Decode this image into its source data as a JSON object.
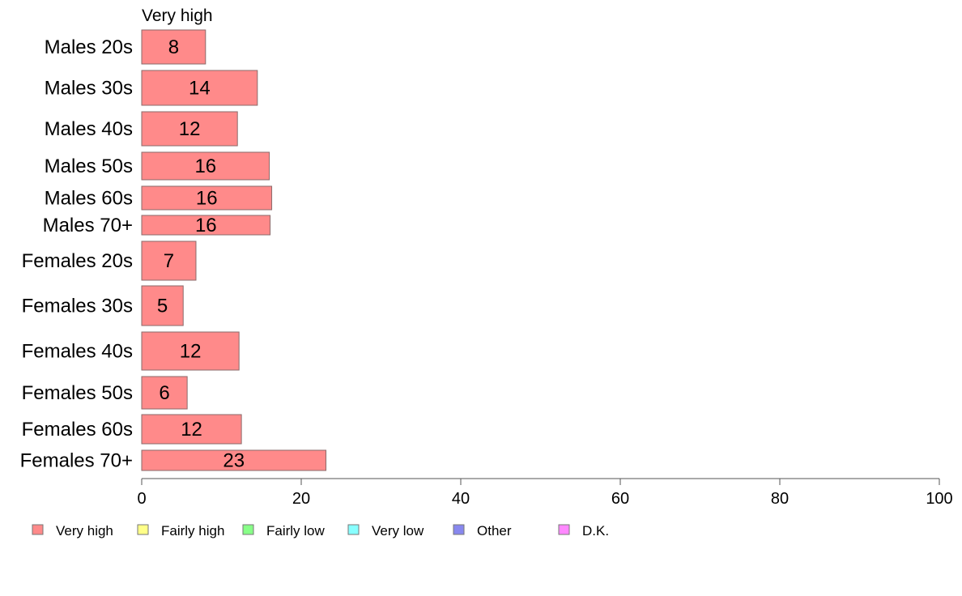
{
  "chart_data": {
    "type": "bar",
    "orientation": "horizontal",
    "stacked": true,
    "series_title": "Very high",
    "categories": [
      "Males 20s",
      "Males 30s",
      "Males 40s",
      "Males 50s",
      "Males 60s",
      "Males 70+",
      "Females 20s",
      "Females 30s",
      "Females 40s",
      "Females 50s",
      "Females 60s",
      "Females 70+"
    ],
    "series": [
      {
        "name": "Very high",
        "color": "#ff8a8a",
        "values": [
          8,
          14.5,
          12,
          16,
          16.3,
          16.1,
          6.8,
          5.2,
          12.2,
          5.7,
          12.5,
          23.1
        ]
      }
    ],
    "value_labels": [
      "8",
      "14",
      "12",
      "16",
      "16",
      "16",
      "7",
      "5",
      "12",
      "6",
      "12",
      "23"
    ],
    "xlim": [
      0,
      100
    ],
    "xticks": [
      "0",
      "20",
      "40",
      "60",
      "80",
      "100"
    ],
    "grid": false,
    "legend_position": "bottom",
    "legend": [
      {
        "label": "Very high",
        "color": "#ff8a8a"
      },
      {
        "label": "Fairly high",
        "color": "#ffff88"
      },
      {
        "label": "Fairly low",
        "color": "#88ff88"
      },
      {
        "label": "Very low",
        "color": "#88ffff"
      },
      {
        "label": "Other",
        "color": "#8888ee"
      },
      {
        "label": "D.K.",
        "color": "#ff88ff"
      }
    ]
  }
}
